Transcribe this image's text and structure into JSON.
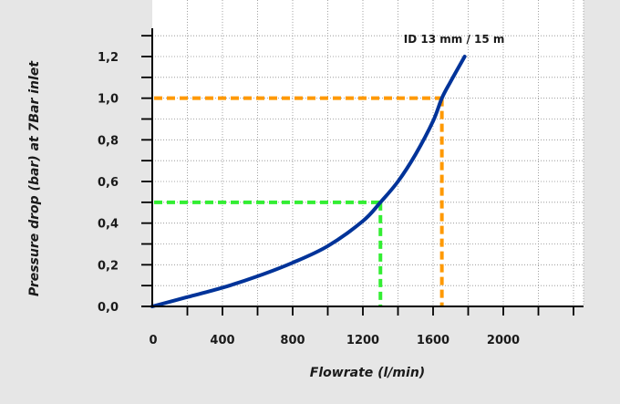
{
  "chart_data": {
    "type": "line",
    "title": "",
    "xlabel": "Flowrate (l/min)",
    "ylabel": "Pressure drop (bar) at 7Bar inlet",
    "xlim": [
      0,
      2400
    ],
    "ylim": [
      0,
      1.2
    ],
    "x_ticks": [
      0,
      400,
      800,
      1200,
      1600,
      2000
    ],
    "x_tick_labels": [
      "0",
      "400",
      "800",
      "1200",
      "1600",
      "2000"
    ],
    "x_minor_step": 200,
    "y_ticks": [
      0,
      0.2,
      0.4,
      0.6,
      0.8,
      1.0,
      1.2
    ],
    "y_tick_labels": [
      "0,0",
      "0,2",
      "0,4",
      "0,6",
      "0,8",
      "1,0",
      "1,2"
    ],
    "y_minor_step": 0.1,
    "grid": true,
    "grid_style": "dotted",
    "background_color": "#e6e6e6",
    "plot_background_color": "#ffffff",
    "series": [
      {
        "color": "#003399",
        "x": [
          0,
          200,
          400,
          600,
          800,
          1000,
          1200,
          1300,
          1400,
          1500,
          1600,
          1650,
          1700,
          1780
        ],
        "y": [
          0,
          0.045,
          0.09,
          0.145,
          0.21,
          0.29,
          0.41,
          0.5,
          0.6,
          0.73,
          0.89,
          1.0,
          1.08,
          1.2
        ]
      }
    ],
    "annotations": [
      {
        "text": "ID 13 mm / 15 m",
        "x": 1720,
        "y": 1.265
      }
    ],
    "reference_lines": [
      {
        "color": "#ff9900",
        "x": 1650,
        "y": 1.0
      },
      {
        "color": "#33ee33",
        "x": 1300,
        "y": 0.5
      }
    ]
  }
}
